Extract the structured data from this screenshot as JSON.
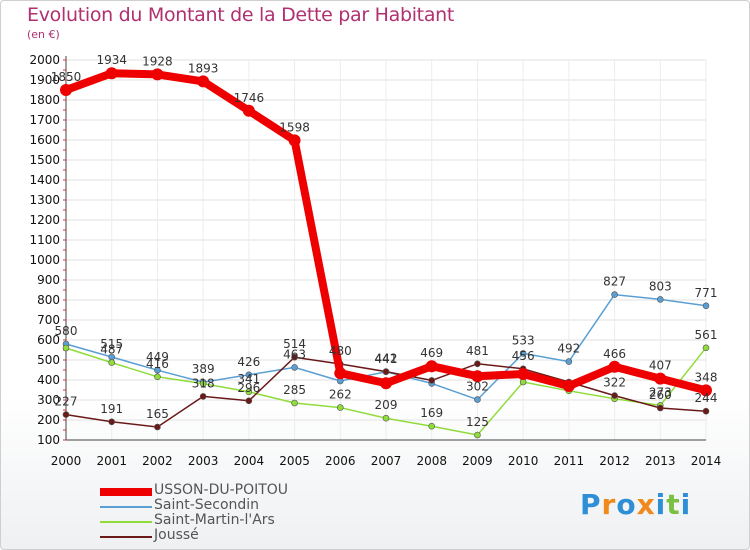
{
  "title": "Evolution du Montant de la Dette par Habitant",
  "subtitle": "(en €)",
  "logo": {
    "text": "Proxiti",
    "letters": [
      "P",
      "r",
      "o",
      "x",
      "i",
      "t",
      "i"
    ],
    "colors": [
      "#2f8fd6",
      "#f08a1c",
      "#2f8fd6",
      "#f08a1c",
      "#2f8fd6",
      "#7ac143",
      "#2f8fd6"
    ]
  },
  "chart_data": {
    "type": "line",
    "title": "Evolution du Montant de la Dette par Habitant",
    "xlabel": "",
    "ylabel": "",
    "x": [
      "2000",
      "2001",
      "2002",
      "2003",
      "2004",
      "2005",
      "2006",
      "2007",
      "2008",
      "2009",
      "2010",
      "2011",
      "2012",
      "2013",
      "2014"
    ],
    "yticks": [
      "100",
      "200",
      "300",
      "400",
      "500",
      "600",
      "700",
      "800",
      "900",
      "1000",
      "1100",
      "1200",
      "1300",
      "1400",
      "1500",
      "1600",
      "1700",
      "1800",
      "1900",
      "2000"
    ],
    "ylim": [
      100,
      2000
    ],
    "grid": true,
    "legend_position": "bottom-left",
    "series": [
      {
        "name": "USSON-DU-POITOU",
        "color": "#ee0000",
        "width": 8,
        "marker": 6,
        "values": [
          1850,
          1934,
          1928,
          1893,
          1746,
          1598,
          434,
          384,
          469,
          419,
          430,
          370,
          466,
          407,
          348
        ],
        "labels": [
          "1850",
          "1934",
          "1928",
          "1893",
          "1746",
          "1598",
          "",
          "",
          "469",
          "",
          "",
          "",
          "466",
          "407",
          "348"
        ]
      },
      {
        "name": "Saint-Secondin",
        "color": "#5a9fd4",
        "width": 1.5,
        "marker": 3,
        "values": [
          580,
          515,
          449,
          389,
          426,
          463,
          395,
          441,
          383,
          302,
          533,
          492,
          827,
          803,
          771
        ],
        "labels": [
          "580",
          "515",
          "449",
          "389",
          "426",
          "463",
          "",
          "441",
          "",
          "302",
          "533",
          "492",
          "827",
          "803",
          "771"
        ]
      },
      {
        "name": "Saint-Martin-l'Ars",
        "color": "#8fdc3a",
        "width": 1.5,
        "marker": 3,
        "values": [
          560,
          487,
          416,
          382,
          341,
          285,
          262,
          209,
          169,
          125,
          390,
          346,
          306,
          273,
          561
        ],
        "labels": [
          "",
          "487",
          "416",
          "",
          "341",
          "285",
          "262",
          "209",
          "169",
          "125",
          "",
          "",
          "",
          "273",
          "561"
        ]
      },
      {
        "name": "Joussé",
        "color": "#6b1a1a",
        "width": 1.5,
        "marker": 3,
        "values": [
          227,
          191,
          165,
          318,
          296,
          514,
          480,
          442,
          398,
          481,
          456,
          390,
          322,
          260,
          244
        ],
        "labels": [
          "227",
          "191",
          "165",
          "318",
          "296",
          "514",
          "480",
          "442",
          "",
          "481",
          "456",
          "",
          "322",
          "260",
          "244"
        ]
      }
    ]
  }
}
